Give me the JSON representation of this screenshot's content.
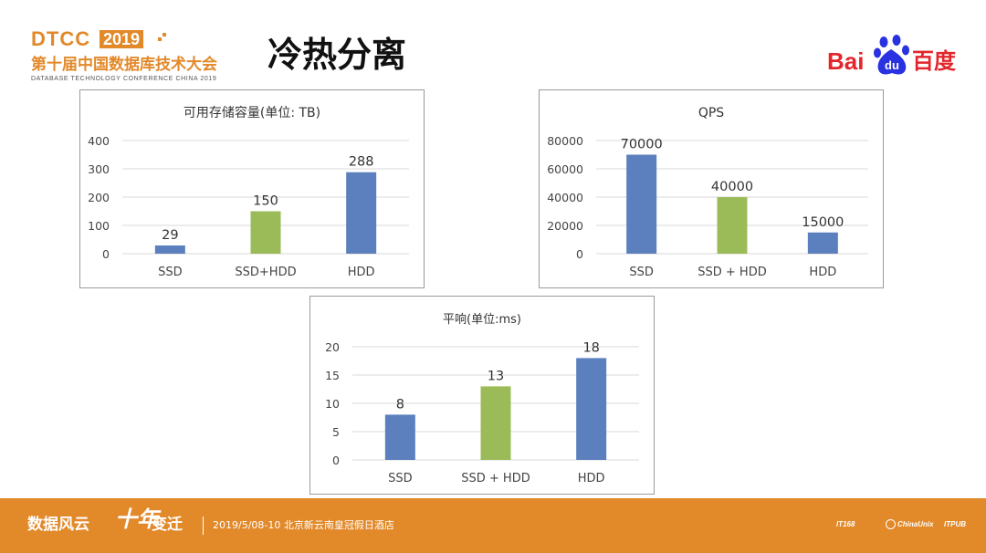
{
  "header": {
    "logo_dtcc": "DTCC",
    "logo_year": "2019",
    "logo_cn": "第十届中国数据库技术大会",
    "logo_en": "DATABASE TECHNOLOGY CONFERENCE CHINA 2019",
    "title": "冷热分离",
    "baidu_text": "Bai",
    "baidu_du": "du",
    "baidu_cn": "百度",
    "brand_color": "#e2262c",
    "accent_color": "#e2892a"
  },
  "chart_data": [
    {
      "type": "bar",
      "title": "可用存储容量(单位: TB)",
      "categories": [
        "SSD",
        "SSD+HDD",
        "HDD"
      ],
      "values": [
        29,
        150,
        288
      ],
      "colors": [
        "#5b80bd",
        "#9bbb59",
        "#5b80bd"
      ],
      "yticks": [
        "0",
        "100",
        "200",
        "300",
        "400"
      ],
      "ylim": [
        0,
        400
      ],
      "grid": true
    },
    {
      "type": "bar",
      "title": "QPS",
      "categories": [
        "SSD",
        "SSD + HDD",
        "HDD"
      ],
      "values": [
        70000,
        40000,
        15000
      ],
      "colors": [
        "#5b80bd",
        "#9bbb59",
        "#5b80bd"
      ],
      "yticks": [
        "0",
        "20000",
        "40000",
        "60000",
        "80000"
      ],
      "ylim": [
        0,
        80000
      ],
      "grid": true
    },
    {
      "type": "bar",
      "title": "平响(单位:ms)",
      "categories": [
        "SSD",
        "SSD + HDD",
        "HDD"
      ],
      "values": [
        8,
        13,
        18
      ],
      "colors": [
        "#5b80bd",
        "#9bbb59",
        "#5b80bd"
      ],
      "yticks": [
        "0",
        "5",
        "10",
        "15",
        "20"
      ],
      "ylim": [
        0,
        20
      ],
      "grid": true
    }
  ],
  "footer": {
    "slogan_left": "数据风云",
    "slogan_mid": "十年",
    "slogan_right": "变迁",
    "info": "2019/5/08-10  北京新云南皇冠假日酒店",
    "sponsor1": "IT168",
    "sponsor2": "ChinaUnix",
    "sponsor3": "ITPUB"
  }
}
